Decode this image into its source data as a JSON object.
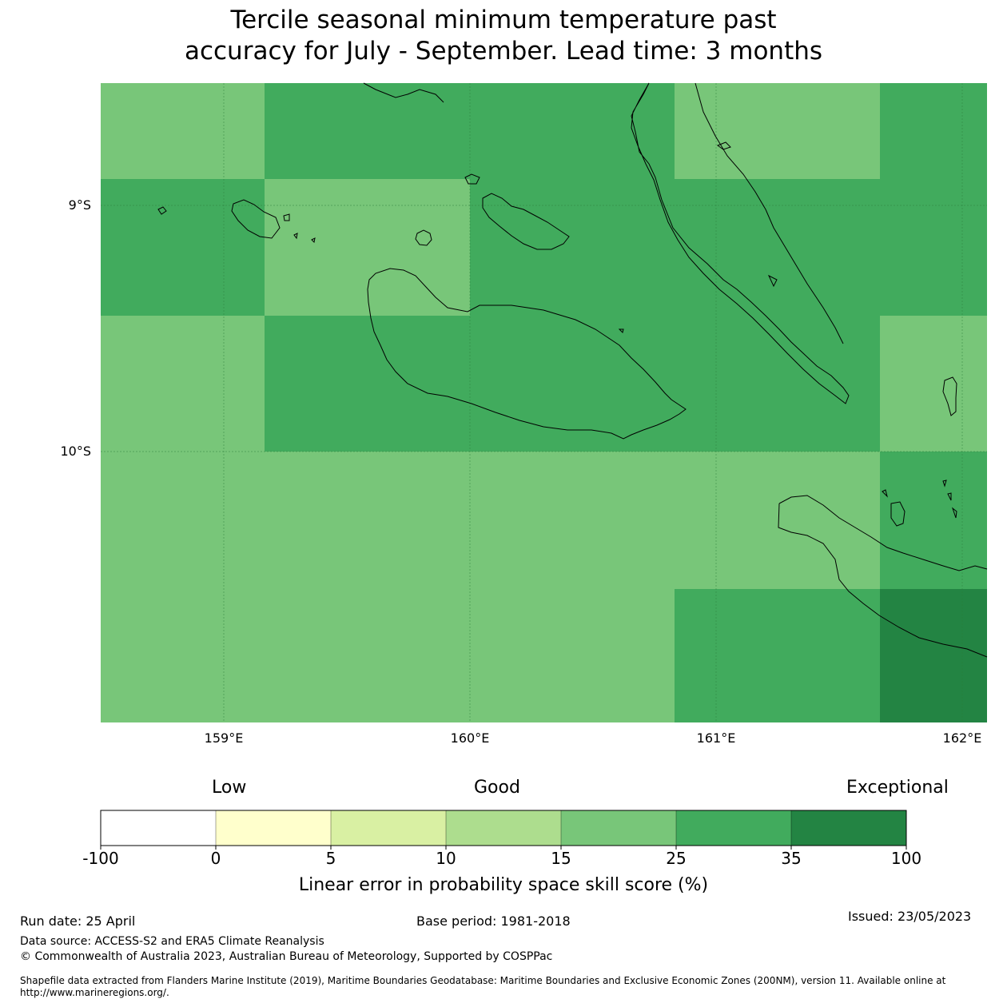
{
  "title": {
    "line1": "Tercile seasonal minimum temperature past",
    "line2": "accuracy for July - September. Lead time: 3 months"
  },
  "map": {
    "lon_labels": [
      "159°E",
      "160°E",
      "161°E",
      "162°E"
    ],
    "lat_labels": [
      "9°S",
      "10°S"
    ],
    "colors": {
      "band_15_25": "#78c679",
      "band_25_35": "#41ab5d",
      "band_35_100": "#238443"
    }
  },
  "legend": {
    "categories": {
      "low": "Low",
      "good": "Good",
      "exceptional": "Exceptional"
    },
    "boundaries": [
      "-100",
      "0",
      "5",
      "10",
      "15",
      "25",
      "35",
      "100"
    ],
    "colors": [
      "#ffffff",
      "#ffffcc",
      "#d9f0a3",
      "#addd8e",
      "#78c679",
      "#41ab5d",
      "#238443"
    ],
    "label": "Linear error in probability space skill score (%)"
  },
  "footer": {
    "run_date": "Run date: 25 April",
    "base_period": "Base period: 1981-2018",
    "issued": "Issued: 23/05/2023",
    "data_source": "Data source: ACCESS-S2 and ERA5 Climate Reanalysis",
    "copyright": "© Commonwealth of Australia 2023, Australian Bureau of Meteorology, Supported by COSPPac",
    "shapefile_line1": "Shapefile data extracted from Flanders Marine Institute (2019), Maritime Boundaries Geodatabase: Maritime Boundaries and Exclusive Economic Zones (200NM), version 11. Available online at",
    "shapefile_line2": "http://www.marineregions.org/."
  }
}
